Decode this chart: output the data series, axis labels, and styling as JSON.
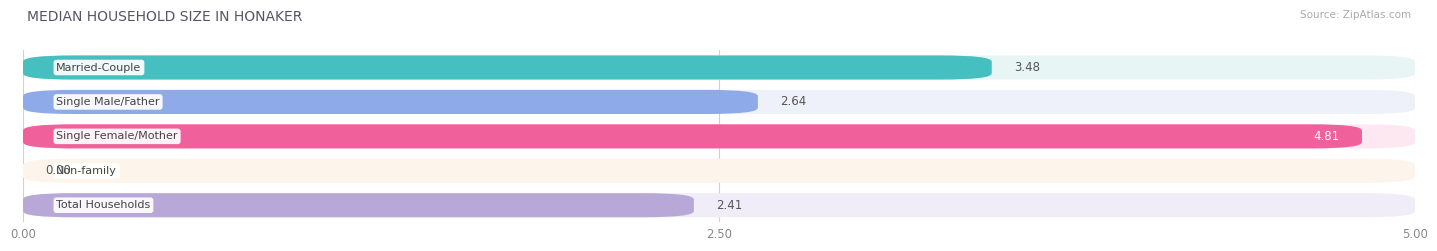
{
  "title": "MEDIAN HOUSEHOLD SIZE IN HONAKER",
  "source": "Source: ZipAtlas.com",
  "categories": [
    "Married-Couple",
    "Single Male/Father",
    "Single Female/Mother",
    "Non-family",
    "Total Households"
  ],
  "values": [
    3.48,
    2.64,
    4.81,
    0.0,
    2.41
  ],
  "bar_colors": [
    "#45bfbf",
    "#8eaae8",
    "#f0609a",
    "#f5c8a0",
    "#b8a8d8"
  ],
  "bar_bg_colors": [
    "#e8f5f5",
    "#eef0fa",
    "#fde8f2",
    "#fdf5ec",
    "#f0ecf8"
  ],
  "value_in_bar": [
    true,
    false,
    true,
    false,
    false
  ],
  "value_colors_in": [
    "#ffffff",
    "#555555",
    "#ffffff",
    "#555555",
    "#555555"
  ],
  "xlim": [
    0,
    5.0
  ],
  "xticks": [
    0.0,
    2.5,
    5.0
  ],
  "xtick_labels": [
    "0.00",
    "2.50",
    "5.00"
  ],
  "title_fontsize": 10,
  "label_fontsize": 8,
  "value_fontsize": 8.5,
  "background_color": "#ffffff",
  "row_bg_color": "#f0f0f0"
}
